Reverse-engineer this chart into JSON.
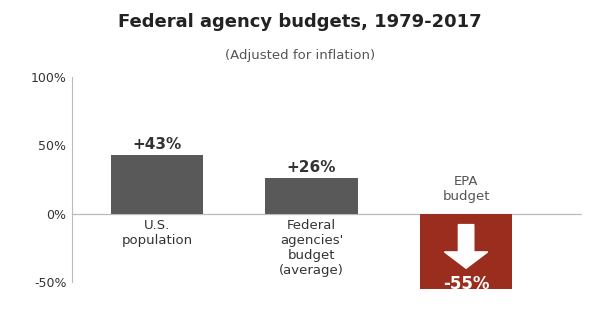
{
  "title": "Federal agency budgets, 1979-2017",
  "subtitle": "(Adjusted for inflation)",
  "values": [
    43,
    26,
    -55
  ],
  "bar_labels": [
    "+43%",
    "+26%",
    "-55%"
  ],
  "bar_colors": [
    "#595959",
    "#595959",
    "#9b2d1f"
  ],
  "epa_label_above": "EPA\nbudget",
  "xlabel_bar0": "U.S.\npopulation",
  "xlabel_bar1": "Federal\nagencies'\nbudget\n(average)",
  "ylim": [
    -65,
    115
  ],
  "yticks": [
    -50,
    0,
    50,
    100
  ],
  "ytick_labels": [
    "-50%",
    "0%",
    "50%",
    "100%"
  ],
  "background_color": "#ffffff",
  "bar_width": 0.6,
  "title_fontsize": 13,
  "subtitle_fontsize": 9.5,
  "bar_label_fontsize": 11,
  "xlabel_fontsize": 9.5,
  "epa_label_fontsize": 9.5,
  "neg_label_fontsize": 12,
  "arrow_color": "#ffffff",
  "text_color": "#555555",
  "dark_text": "#333333"
}
